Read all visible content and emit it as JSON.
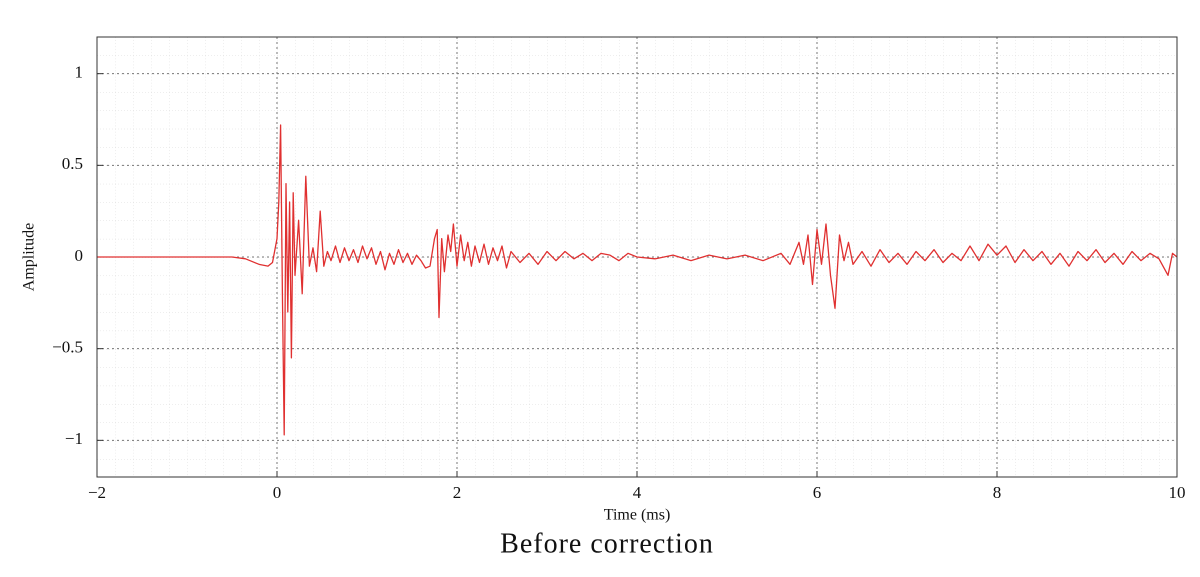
{
  "chart_data": {
    "type": "line",
    "title": "Before correction",
    "x_label": "Time (ms)",
    "y_label": "Amplitude",
    "xlim": [
      -2,
      10
    ],
    "ylim": [
      -1.2,
      1.2
    ],
    "xticks": [
      {
        "value": -2,
        "label": "−2"
      },
      0,
      2,
      4,
      6,
      8,
      10
    ],
    "yticks": [
      {
        "value": -1,
        "label": "−1"
      },
      {
        "value": -0.5,
        "label": "−0.5"
      },
      0,
      0.5,
      1
    ],
    "grid": true,
    "series": [
      {
        "color": "#e03030",
        "x": [
          -2,
          -0.5,
          -0.35,
          -0.2,
          -0.1,
          -0.05,
          0,
          0.02,
          0.04,
          0.06,
          0.08,
          0.1,
          0.12,
          0.14,
          0.16,
          0.18,
          0.2,
          0.24,
          0.28,
          0.32,
          0.36,
          0.4,
          0.44,
          0.48,
          0.52,
          0.56,
          0.6,
          0.65,
          0.7,
          0.75,
          0.8,
          0.85,
          0.9,
          0.95,
          1.0,
          1.05,
          1.1,
          1.15,
          1.2,
          1.25,
          1.3,
          1.35,
          1.4,
          1.45,
          1.5,
          1.55,
          1.6,
          1.65,
          1.7,
          1.75,
          1.78,
          1.8,
          1.83,
          1.86,
          1.9,
          1.93,
          1.96,
          2.0,
          2.04,
          2.08,
          2.12,
          2.16,
          2.2,
          2.25,
          2.3,
          2.35,
          2.4,
          2.45,
          2.5,
          2.55,
          2.6,
          2.7,
          2.8,
          2.9,
          3.0,
          3.1,
          3.2,
          3.3,
          3.4,
          3.5,
          3.6,
          3.7,
          3.8,
          3.9,
          4.0,
          4.2,
          4.4,
          4.6,
          4.8,
          5.0,
          5.2,
          5.4,
          5.6,
          5.7,
          5.8,
          5.85,
          5.9,
          5.95,
          6.0,
          6.05,
          6.1,
          6.15,
          6.2,
          6.25,
          6.3,
          6.35,
          6.4,
          6.5,
          6.6,
          6.7,
          6.8,
          6.9,
          7.0,
          7.1,
          7.2,
          7.3,
          7.4,
          7.5,
          7.6,
          7.7,
          7.8,
          7.9,
          8.0,
          8.1,
          8.2,
          8.3,
          8.4,
          8.5,
          8.6,
          8.7,
          8.8,
          8.9,
          9.0,
          9.1,
          9.2,
          9.3,
          9.4,
          9.5,
          9.6,
          9.7,
          9.8,
          9.9,
          9.95,
          10
        ],
        "values": [
          0,
          0,
          -0.01,
          -0.04,
          -0.05,
          -0.03,
          0.1,
          0.3,
          0.72,
          -0.2,
          -0.97,
          0.4,
          -0.3,
          0.3,
          -0.55,
          0.35,
          -0.1,
          0.2,
          -0.2,
          0.44,
          -0.05,
          0.05,
          -0.08,
          0.25,
          -0.05,
          0.03,
          -0.02,
          0.06,
          -0.03,
          0.05,
          -0.02,
          0.04,
          -0.03,
          0.06,
          -0.01,
          0.05,
          -0.04,
          0.03,
          -0.07,
          0.02,
          -0.04,
          0.04,
          -0.03,
          0.02,
          -0.04,
          0.01,
          -0.02,
          -0.06,
          -0.05,
          0.1,
          0.15,
          -0.33,
          0.1,
          -0.08,
          0.12,
          0.03,
          0.18,
          -0.05,
          0.12,
          -0.02,
          0.08,
          -0.05,
          0.06,
          -0.03,
          0.07,
          -0.04,
          0.05,
          -0.02,
          0.06,
          -0.06,
          0.03,
          -0.03,
          0.02,
          -0.04,
          0.03,
          -0.02,
          0.03,
          -0.01,
          0.02,
          -0.02,
          0.02,
          0.01,
          -0.02,
          0.02,
          0,
          -0.01,
          0.01,
          -0.02,
          0.01,
          -0.01,
          0.01,
          -0.02,
          0.02,
          -0.04,
          0.08,
          -0.04,
          0.12,
          -0.15,
          0.15,
          -0.04,
          0.18,
          -0.1,
          -0.28,
          0.12,
          -0.02,
          0.08,
          -0.04,
          0.03,
          -0.05,
          0.04,
          -0.03,
          0.02,
          -0.04,
          0.03,
          -0.02,
          0.04,
          -0.03,
          0.02,
          -0.02,
          0.06,
          -0.02,
          0.07,
          0.01,
          0.06,
          -0.03,
          0.04,
          -0.02,
          0.03,
          -0.04,
          0.02,
          -0.05,
          0.03,
          -0.02,
          0.04,
          -0.03,
          0.02,
          -0.04,
          0.03,
          -0.02,
          0.02,
          -0.01,
          -0.1,
          0.02,
          0
        ]
      }
    ]
  }
}
